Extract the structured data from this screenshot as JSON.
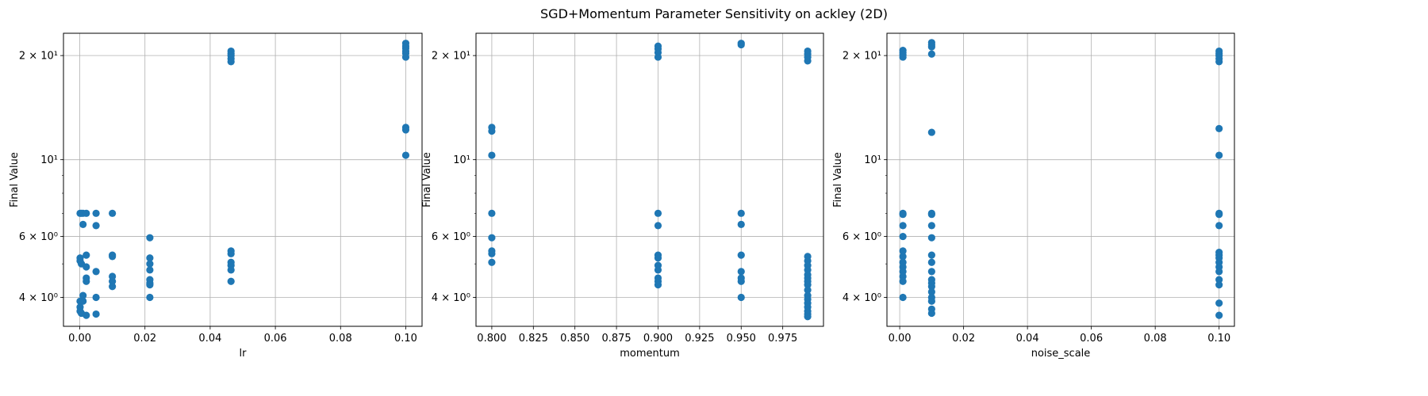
{
  "title": "SGD+Momentum Parameter Sensitivity on ackley (2D)",
  "colors": {
    "marker": "#1f77b4",
    "grid": "#b0b0b0",
    "frame": "#000000"
  },
  "chart_data": [
    {
      "type": "scatter",
      "xlabel": "lr",
      "ylabel": "Final Value",
      "yscale": "log",
      "grid": true,
      "xlim": [
        -0.005,
        0.105
      ],
      "ylim": [
        3.3,
        23.2
      ],
      "x_ticks": [
        {
          "value": 0.0,
          "label": "0.00"
        },
        {
          "value": 0.02,
          "label": "0.02"
        },
        {
          "value": 0.04,
          "label": "0.04"
        },
        {
          "value": 0.06,
          "label": "0.06"
        },
        {
          "value": 0.08,
          "label": "0.08"
        },
        {
          "value": 0.1,
          "label": "0.10"
        }
      ],
      "y_ticks": [
        {
          "value": 4,
          "label": "4 × 10⁰"
        },
        {
          "value": 6,
          "label": "6 × 10⁰"
        },
        {
          "value": 10,
          "label": "10¹"
        },
        {
          "value": 20,
          "label": "2 × 10¹"
        }
      ],
      "series": [
        {
          "points": [
            [
              0.0001,
              7.0
            ],
            [
              0.0001,
              5.2
            ],
            [
              0.0001,
              5.1
            ],
            [
              0.0001,
              3.9
            ],
            [
              0.0001,
              3.75
            ],
            [
              0.0001,
              3.65
            ],
            [
              0.0005,
              7.0
            ],
            [
              0.0005,
              5.0
            ],
            [
              0.0005,
              3.6
            ],
            [
              0.001,
              7.0
            ],
            [
              0.001,
              6.5
            ],
            [
              0.001,
              4.05
            ],
            [
              0.001,
              3.9
            ],
            [
              0.002,
              7.0
            ],
            [
              0.002,
              5.3
            ],
            [
              0.002,
              4.9
            ],
            [
              0.002,
              4.55
            ],
            [
              0.002,
              4.45
            ],
            [
              0.002,
              3.55
            ],
            [
              0.005,
              7.0
            ],
            [
              0.005,
              6.45
            ],
            [
              0.005,
              4.75
            ],
            [
              0.005,
              4.0
            ],
            [
              0.005,
              3.58
            ],
            [
              0.01,
              7.0
            ],
            [
              0.01,
              5.3
            ],
            [
              0.01,
              5.25
            ],
            [
              0.01,
              4.6
            ],
            [
              0.01,
              4.45
            ],
            [
              0.01,
              4.3
            ],
            [
              0.0215,
              5.95
            ],
            [
              0.0215,
              5.2
            ],
            [
              0.0215,
              5.0
            ],
            [
              0.0215,
              4.8
            ],
            [
              0.0215,
              4.5
            ],
            [
              0.0215,
              4.4
            ],
            [
              0.0215,
              4.35
            ],
            [
              0.0215,
              4.0
            ],
            [
              0.0464,
              20.6
            ],
            [
              0.0464,
              20.3
            ],
            [
              0.0464,
              20.0
            ],
            [
              0.0464,
              19.6
            ],
            [
              0.0464,
              19.2
            ],
            [
              0.0464,
              5.45
            ],
            [
              0.0464,
              5.35
            ],
            [
              0.0464,
              5.05
            ],
            [
              0.0464,
              4.95
            ],
            [
              0.0464,
              4.8
            ],
            [
              0.0464,
              4.45
            ],
            [
              0.1,
              21.7
            ],
            [
              0.1,
              21.3
            ],
            [
              0.1,
              21.0
            ],
            [
              0.1,
              20.6
            ],
            [
              0.1,
              20.3
            ],
            [
              0.1,
              19.8
            ],
            [
              0.1,
              12.4
            ],
            [
              0.1,
              12.2
            ],
            [
              0.1,
              10.3
            ]
          ]
        }
      ]
    },
    {
      "type": "scatter",
      "xlabel": "momentum",
      "ylabel": "Final Value",
      "yscale": "log",
      "grid": true,
      "xlim": [
        0.7905,
        0.9995
      ],
      "ylim": [
        3.3,
        23.2
      ],
      "x_ticks": [
        {
          "value": 0.8,
          "label": "0.800"
        },
        {
          "value": 0.825,
          "label": "0.825"
        },
        {
          "value": 0.85,
          "label": "0.850"
        },
        {
          "value": 0.875,
          "label": "0.875"
        },
        {
          "value": 0.9,
          "label": "0.900"
        },
        {
          "value": 0.925,
          "label": "0.925"
        },
        {
          "value": 0.95,
          "label": "0.950"
        },
        {
          "value": 0.975,
          "label": "0.975"
        }
      ],
      "y_ticks": [
        {
          "value": 4,
          "label": "4 × 10⁰"
        },
        {
          "value": 6,
          "label": "6 × 10⁰"
        },
        {
          "value": 10,
          "label": "10¹"
        },
        {
          "value": 20,
          "label": "2 × 10¹"
        }
      ],
      "series": [
        {
          "points": [
            [
              0.8,
              12.4
            ],
            [
              0.8,
              12.1
            ],
            [
              0.8,
              10.3
            ],
            [
              0.8,
              7.0
            ],
            [
              0.8,
              5.95
            ],
            [
              0.8,
              5.45
            ],
            [
              0.8,
              5.35
            ],
            [
              0.8,
              5.05
            ],
            [
              0.9,
              21.3
            ],
            [
              0.9,
              20.9
            ],
            [
              0.9,
              20.4
            ],
            [
              0.9,
              19.8
            ],
            [
              0.9,
              7.0
            ],
            [
              0.9,
              6.45
            ],
            [
              0.9,
              5.3
            ],
            [
              0.9,
              5.2
            ],
            [
              0.9,
              4.95
            ],
            [
              0.9,
              4.8
            ],
            [
              0.9,
              4.55
            ],
            [
              0.9,
              4.45
            ],
            [
              0.9,
              4.35
            ],
            [
              0.95,
              21.7
            ],
            [
              0.95,
              21.5
            ],
            [
              0.95,
              7.0
            ],
            [
              0.95,
              6.5
            ],
            [
              0.95,
              5.3
            ],
            [
              0.95,
              4.75
            ],
            [
              0.95,
              4.55
            ],
            [
              0.95,
              4.45
            ],
            [
              0.95,
              4.0
            ],
            [
              0.99,
              20.6
            ],
            [
              0.99,
              20.2
            ],
            [
              0.99,
              19.8
            ],
            [
              0.99,
              19.3
            ],
            [
              0.99,
              5.25
            ],
            [
              0.99,
              5.1
            ],
            [
              0.99,
              4.95
            ],
            [
              0.99,
              4.8
            ],
            [
              0.99,
              4.65
            ],
            [
              0.99,
              4.55
            ],
            [
              0.99,
              4.45
            ],
            [
              0.99,
              4.35
            ],
            [
              0.99,
              4.2
            ],
            [
              0.99,
              4.05
            ],
            [
              0.99,
              3.95
            ],
            [
              0.99,
              3.85
            ],
            [
              0.99,
              3.75
            ],
            [
              0.99,
              3.65
            ],
            [
              0.99,
              3.58
            ],
            [
              0.99,
              3.52
            ]
          ]
        }
      ]
    },
    {
      "type": "scatter",
      "xlabel": "noise_scale",
      "ylabel": "Final Value",
      "yscale": "log",
      "grid": true,
      "xlim": [
        -0.004,
        0.1048
      ],
      "ylim": [
        3.3,
        23.2
      ],
      "x_ticks": [
        {
          "value": 0.0,
          "label": "0.00"
        },
        {
          "value": 0.02,
          "label": "0.02"
        },
        {
          "value": 0.04,
          "label": "0.04"
        },
        {
          "value": 0.06,
          "label": "0.06"
        },
        {
          "value": 0.08,
          "label": "0.08"
        },
        {
          "value": 0.1,
          "label": "0.10"
        }
      ],
      "y_ticks": [
        {
          "value": 4,
          "label": "4 × 10⁰"
        },
        {
          "value": 6,
          "label": "6 × 10⁰"
        },
        {
          "value": 10,
          "label": "10¹"
        },
        {
          "value": 20,
          "label": "2 × 10¹"
        }
      ],
      "series": [
        {
          "points": [
            [
              0.001,
              20.7
            ],
            [
              0.001,
              20.4
            ],
            [
              0.001,
              20.1
            ],
            [
              0.001,
              19.8
            ],
            [
              0.001,
              7.0
            ],
            [
              0.001,
              6.95
            ],
            [
              0.001,
              6.45
            ],
            [
              0.001,
              6.0
            ],
            [
              0.001,
              5.45
            ],
            [
              0.001,
              5.25
            ],
            [
              0.001,
              5.05
            ],
            [
              0.001,
              4.9
            ],
            [
              0.001,
              4.75
            ],
            [
              0.001,
              4.6
            ],
            [
              0.001,
              4.45
            ],
            [
              0.001,
              4.0
            ],
            [
              0.01,
              21.8
            ],
            [
              0.01,
              21.5
            ],
            [
              0.01,
              21.2
            ],
            [
              0.01,
              20.2
            ],
            [
              0.01,
              12.0
            ],
            [
              0.01,
              7.0
            ],
            [
              0.01,
              6.95
            ],
            [
              0.01,
              6.45
            ],
            [
              0.01,
              5.95
            ],
            [
              0.01,
              5.3
            ],
            [
              0.01,
              5.05
            ],
            [
              0.01,
              4.75
            ],
            [
              0.01,
              4.5
            ],
            [
              0.01,
              4.4
            ],
            [
              0.01,
              4.3
            ],
            [
              0.01,
              4.15
            ],
            [
              0.01,
              4.0
            ],
            [
              0.01,
              3.9
            ],
            [
              0.01,
              3.7
            ],
            [
              0.01,
              3.6
            ],
            [
              0.1,
              20.6
            ],
            [
              0.1,
              20.3
            ],
            [
              0.1,
              20.0
            ],
            [
              0.1,
              19.6
            ],
            [
              0.1,
              19.2
            ],
            [
              0.1,
              12.3
            ],
            [
              0.1,
              10.3
            ],
            [
              0.1,
              7.0
            ],
            [
              0.1,
              6.95
            ],
            [
              0.1,
              6.45
            ],
            [
              0.1,
              5.4
            ],
            [
              0.1,
              5.3
            ],
            [
              0.1,
              5.2
            ],
            [
              0.1,
              5.05
            ],
            [
              0.1,
              4.9
            ],
            [
              0.1,
              4.75
            ],
            [
              0.1,
              4.5
            ],
            [
              0.1,
              4.35
            ],
            [
              0.1,
              3.85
            ],
            [
              0.1,
              3.55
            ]
          ]
        }
      ]
    }
  ]
}
